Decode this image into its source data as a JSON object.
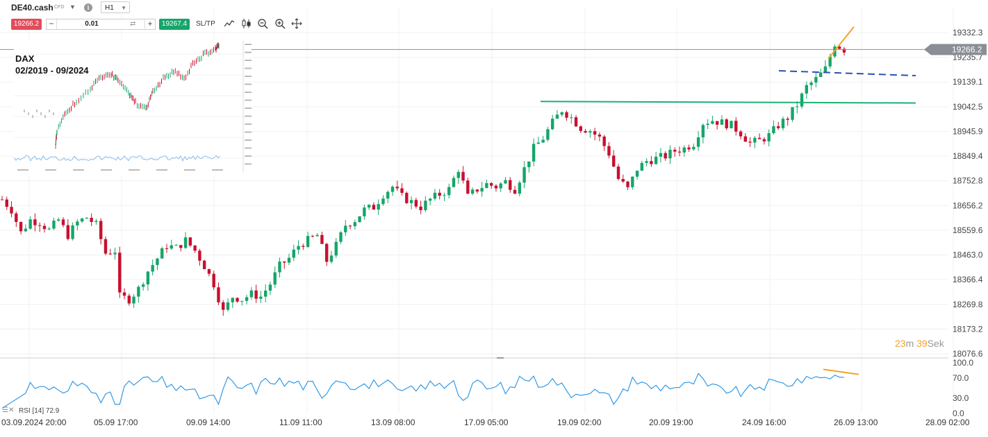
{
  "toolbar": {
    "symbol": "DE40.cash",
    "symbol_type": "CFD",
    "timeframe": "H1",
    "sell_price": "19266.2",
    "buy_price": "19267.4",
    "quantity": "0.01",
    "minus_label": "−",
    "plus_label": "+",
    "sltp_label": "SL/TP"
  },
  "inset": {
    "title": "DAX",
    "period": "02/2019 - 09/2024"
  },
  "price_axis": {
    "ticks": [
      "19332.3",
      "19235.7",
      "19139.1",
      "19042.5",
      "18945.9",
      "18849.4",
      "18752.8",
      "18656.2",
      "18559.6",
      "18463.0",
      "18366.4",
      "18269.8",
      "18173.2",
      "18076.6"
    ],
    "current_price": "19266.2"
  },
  "rsi_axis": {
    "ticks": [
      "100.0",
      "70.0",
      "30.0",
      "0.0"
    ]
  },
  "time_axis": {
    "labels": [
      "03.09.2024 20:00",
      "05.09 17:00",
      "09.09 14:00",
      "11.09 11:00",
      "13.09 08:00",
      "17.09 05:00",
      "19.09 02:00",
      "20.09 19:00",
      "24.09 16:00",
      "26.09 13:00",
      "28.09 02:00"
    ]
  },
  "countdown": {
    "minutes": "23",
    "minutes_unit": "m",
    "seconds": "39",
    "seconds_unit": "Sek"
  },
  "rsi_indicator": {
    "label": "RSI [14] 72.9"
  },
  "colors": {
    "bull": "#16a56a",
    "bear": "#c8102e",
    "support_line": "#1bb075",
    "resistance_dashed": "#2a4fb8",
    "trend_orange": "#f3a32b",
    "rsi_line": "#3399e6",
    "current_price_label_bg": "#8a8f96"
  },
  "chart_data": [
    {
      "type": "candlestick",
      "name": "DE40.cash H1",
      "y_range": [
        18030,
        19380
      ],
      "x_labels": [
        "03.09.2024 20:00",
        "05.09 17:00",
        "09.09 14:00",
        "11.09 11:00",
        "13.09 08:00",
        "17.09 05:00",
        "19.09 02:00",
        "20.09 19:00",
        "24.09 16:00",
        "26.09 13:00",
        "28.09 02:00"
      ],
      "close_path": [
        [
          0,
          18680
        ],
        [
          2,
          18640
        ],
        [
          4,
          18550
        ],
        [
          6,
          18600
        ],
        [
          8,
          18590
        ],
        [
          10,
          18560
        ],
        [
          12,
          18600
        ],
        [
          14,
          18540
        ],
        [
          16,
          18590
        ],
        [
          18,
          18610
        ],
        [
          20,
          18580
        ],
        [
          22,
          18470
        ],
        [
          24,
          18480
        ],
        [
          25,
          18300
        ],
        [
          27,
          18290
        ],
        [
          29,
          18330
        ],
        [
          31,
          18400
        ],
        [
          33,
          18450
        ],
        [
          35,
          18500
        ],
        [
          37,
          18490
        ],
        [
          39,
          18520
        ],
        [
          41,
          18480
        ],
        [
          43,
          18420
        ],
        [
          45,
          18350
        ],
        [
          47,
          18240
        ],
        [
          49,
          18300
        ],
        [
          51,
          18290
        ],
        [
          53,
          18310
        ],
        [
          55,
          18300
        ],
        [
          57,
          18350
        ],
        [
          59,
          18420
        ],
        [
          61,
          18450
        ],
        [
          63,
          18500
        ],
        [
          65,
          18520
        ],
        [
          67,
          18540
        ],
        [
          69,
          18440
        ],
        [
          71,
          18500
        ],
        [
          73,
          18580
        ],
        [
          75,
          18600
        ],
        [
          77,
          18640
        ],
        [
          79,
          18650
        ],
        [
          81,
          18700
        ],
        [
          83,
          18730
        ],
        [
          85,
          18690
        ],
        [
          87,
          18670
        ],
        [
          89,
          18650
        ],
        [
          91,
          18680
        ],
        [
          93,
          18700
        ],
        [
          95,
          18720
        ],
        [
          97,
          18800
        ],
        [
          99,
          18690
        ],
        [
          101,
          18720
        ],
        [
          103,
          18740
        ],
        [
          105,
          18730
        ],
        [
          107,
          18750
        ],
        [
          109,
          18720
        ],
        [
          111,
          18800
        ],
        [
          113,
          18880
        ],
        [
          115,
          18920
        ],
        [
          117,
          18980
        ],
        [
          119,
          19030
        ],
        [
          121,
          19000
        ],
        [
          123,
          18960
        ],
        [
          125,
          18950
        ],
        [
          127,
          18920
        ],
        [
          129,
          18860
        ],
        [
          131,
          18760
        ],
        [
          133,
          18720
        ],
        [
          135,
          18800
        ],
        [
          137,
          18830
        ],
        [
          139,
          18840
        ],
        [
          141,
          18850
        ],
        [
          143,
          18870
        ],
        [
          145,
          18880
        ],
        [
          147,
          18900
        ],
        [
          149,
          18980
        ],
        [
          151,
          18990
        ],
        [
          153,
          18980
        ],
        [
          155,
          18970
        ],
        [
          157,
          18940
        ],
        [
          159,
          18900
        ],
        [
          161,
          18910
        ],
        [
          163,
          18930
        ],
        [
          165,
          18970
        ],
        [
          167,
          19000
        ],
        [
          169,
          19050
        ],
        [
          171,
          19120
        ],
        [
          173,
          19150
        ],
        [
          175,
          19190
        ],
        [
          177,
          19290
        ],
        [
          179,
          19266
        ]
      ]
    },
    {
      "type": "line",
      "name": "RSI [14]",
      "y_range": [
        0,
        100
      ],
      "last_value": 72.9
    }
  ]
}
